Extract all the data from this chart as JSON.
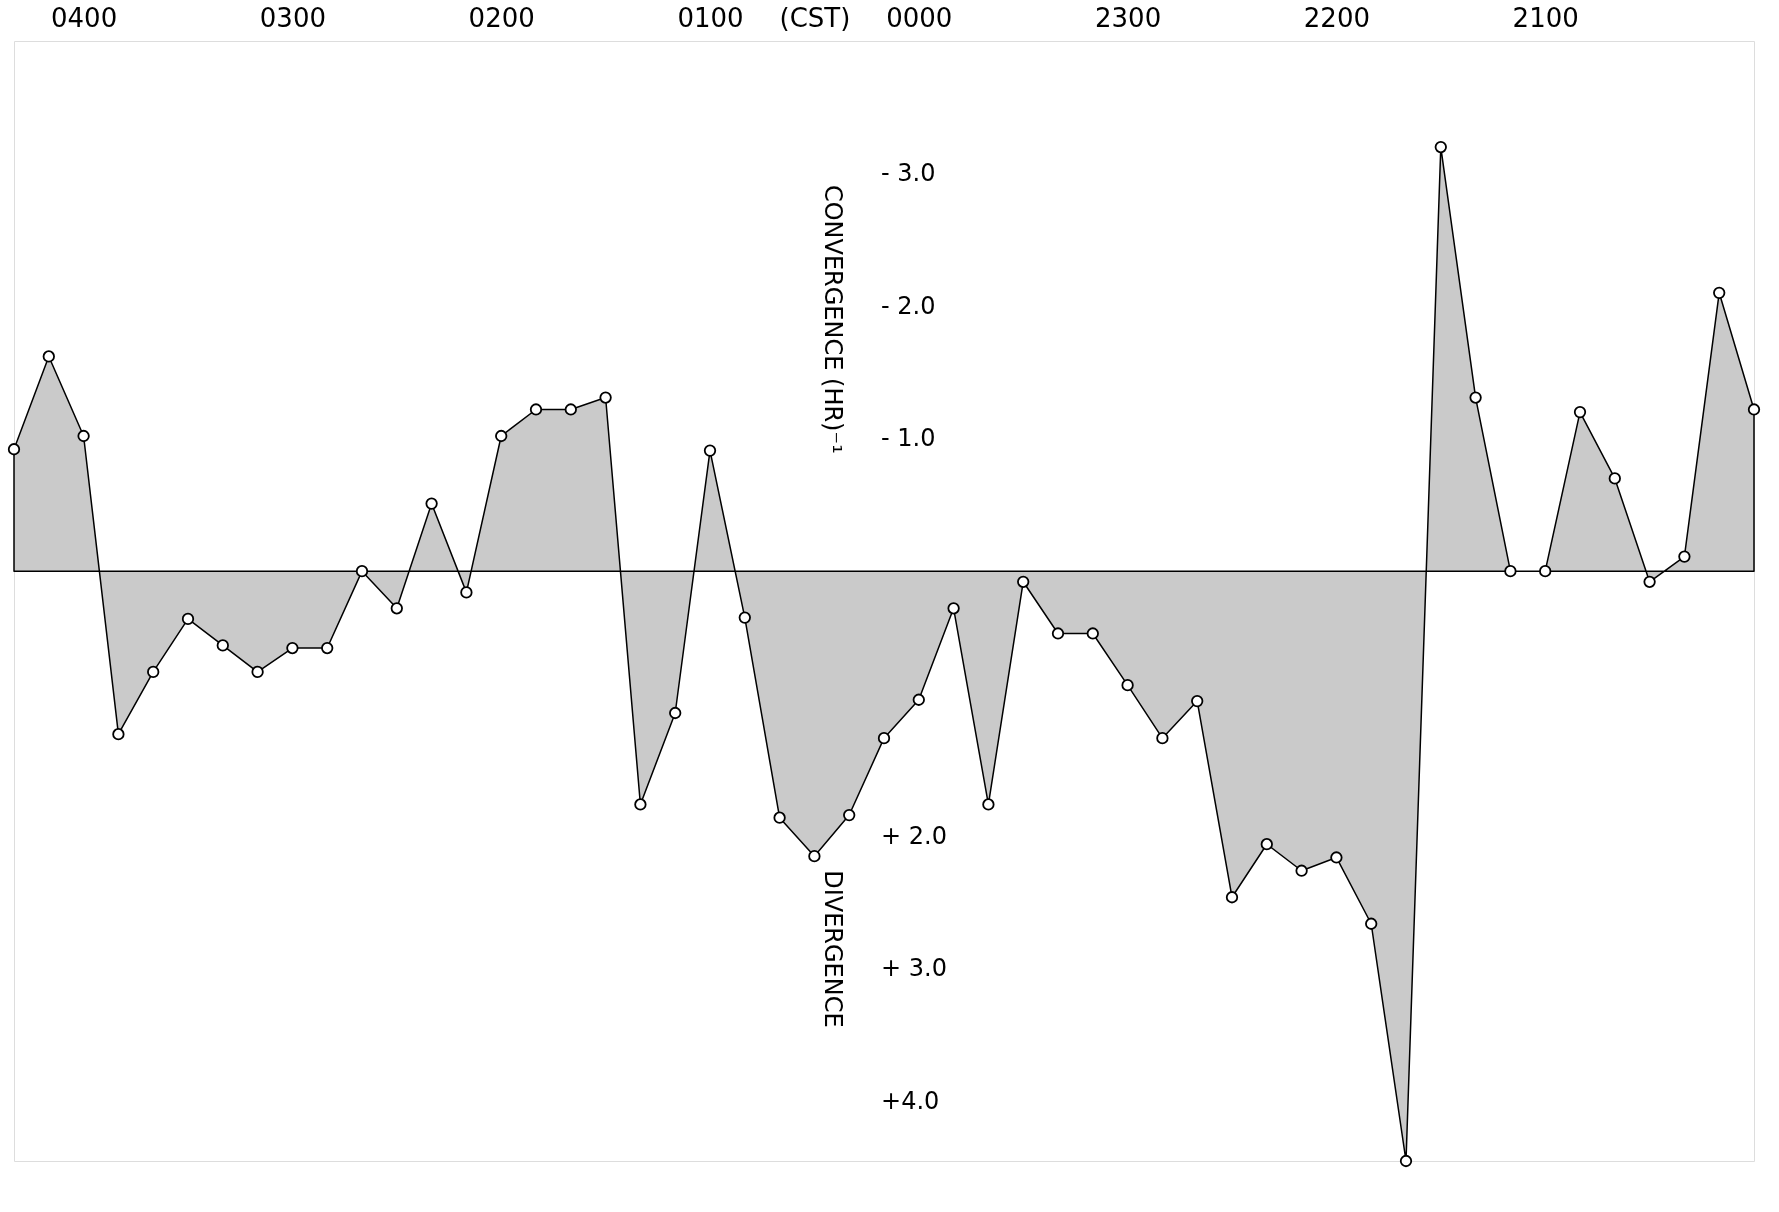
{
  "chart_data": {
    "type": "area",
    "xlabel": "(CST)",
    "ylabel": "CONVERGENCE (HR)⁻¹",
    "annotations": [
      "DIVERGENCE"
    ],
    "categories": [
      null,
      null,
      "0400",
      null,
      null,
      null,
      null,
      null,
      "0300",
      null,
      null,
      null,
      null,
      null,
      "0200",
      null,
      null,
      null,
      null,
      null,
      "0100",
      null,
      null,
      null,
      null,
      null,
      "0000",
      null,
      null,
      null,
      null,
      null,
      "2300",
      null,
      null,
      null,
      null,
      null,
      "2200",
      null,
      null,
      null,
      null,
      null,
      "2100",
      null,
      null,
      null,
      null,
      null,
      null
    ],
    "series": [
      {
        "color": "#000000",
        "values": [
          -0.92,
          -1.62,
          -1.02,
          1.23,
          0.76,
          0.36,
          0.56,
          0.76,
          0.58,
          0.58,
          0.0,
          0.28,
          -0.51,
          0.16,
          -1.02,
          -1.22,
          -1.22,
          -1.31,
          1.76,
          1.07,
          -0.91,
          0.35,
          1.86,
          2.15,
          1.84,
          1.26,
          0.97,
          0.28,
          1.76,
          0.08,
          0.47,
          0.47,
          0.86,
          1.26,
          0.98,
          2.46,
          2.06,
          2.26,
          2.16,
          2.66,
          4.45,
          -3.2,
          -1.31,
          0.0,
          0.0,
          -1.2,
          -0.7,
          0.08,
          -0.11,
          -2.1,
          -1.22
        ]
      }
    ],
    "ylim": [
      4.45,
      -4.0
    ],
    "yticks": [
      {
        "value": -3,
        "label": "- 3.0"
      },
      {
        "value": -2,
        "label": "- 2.0"
      },
      {
        "value": -1,
        "label": "- 1.0"
      },
      {
        "value": 2,
        "label": "+ 2.0"
      },
      {
        "value": 3,
        "label": "+ 3.0"
      },
      {
        "value": 4,
        "label": "+4.0"
      }
    ],
    "marker": "circle",
    "grid": false
  }
}
